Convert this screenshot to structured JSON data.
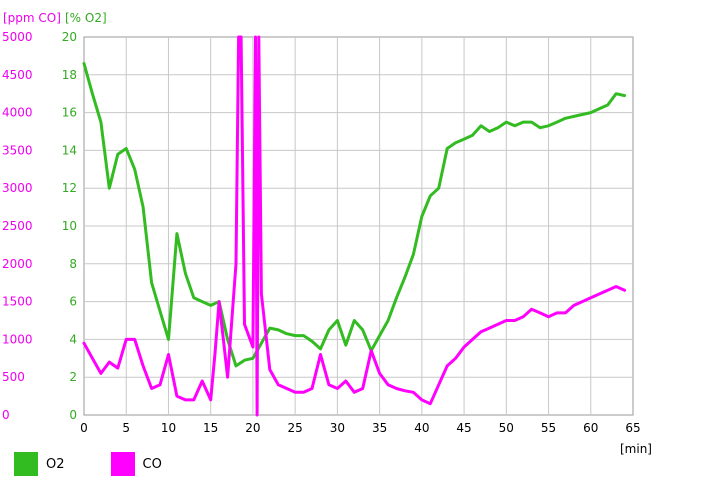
{
  "chart_data": {
    "type": "line",
    "xlabel": "[min]",
    "ylabel_left": "[ppm CO]",
    "ylabel_right": "[% O2]",
    "xlim": [
      0,
      65
    ],
    "ylim_co": [
      0,
      5000
    ],
    "ylim_o2": [
      0,
      20
    ],
    "x_ticks": [
      0,
      5,
      10,
      15,
      20,
      25,
      30,
      35,
      40,
      45,
      50,
      55,
      60,
      65
    ],
    "co_ticks": [
      0,
      500,
      1000,
      1500,
      2000,
      2500,
      3000,
      3500,
      4000,
      4500,
      5000
    ],
    "o2_ticks": [
      0,
      2,
      4,
      6,
      8,
      10,
      12,
      14,
      16,
      18,
      20
    ],
    "grid": true,
    "colors": {
      "o2": "#33bb22",
      "co": "#ff00ff",
      "co_label": "#ee00ee",
      "o2_label": "#33aa22"
    },
    "series": [
      {
        "name": "O2",
        "axis": "o2",
        "color": "#33bb22",
        "x": [
          0,
          1,
          2,
          3,
          4,
          5,
          6,
          7,
          8,
          9,
          10,
          11,
          12,
          13,
          14,
          15,
          16,
          17,
          18,
          19,
          20,
          21,
          22,
          23,
          24,
          25,
          26,
          27,
          28,
          29,
          30,
          31,
          32,
          33,
          34,
          35,
          36,
          37,
          38,
          39,
          40,
          41,
          42,
          43,
          44,
          45,
          46,
          47,
          48,
          49,
          50,
          51,
          52,
          53,
          54,
          55,
          56,
          57,
          58,
          59,
          60,
          61,
          62,
          63,
          64
        ],
        "values": [
          18.6,
          17.0,
          15.5,
          12.0,
          13.8,
          14.1,
          13.0,
          11.0,
          7.0,
          5.5,
          4.0,
          9.6,
          7.5,
          6.2,
          6.0,
          5.8,
          6.0,
          4.0,
          2.6,
          2.9,
          3.0,
          3.8,
          4.6,
          4.5,
          4.3,
          4.2,
          4.2,
          3.9,
          3.5,
          4.5,
          5.0,
          3.7,
          5.0,
          4.5,
          3.4,
          4.2,
          5.0,
          6.2,
          7.3,
          8.5,
          10.5,
          11.6,
          12.0,
          14.1,
          14.4,
          14.6,
          14.8,
          15.3,
          15.0,
          15.2,
          15.5,
          15.3,
          15.5,
          15.5,
          15.2,
          15.3,
          15.5,
          15.7,
          15.8,
          15.9,
          16.0,
          16.2,
          16.4,
          17.0,
          16.9
        ]
      },
      {
        "name": "CO",
        "axis": "co",
        "color": "#ff00ff",
        "x": [
          0,
          1,
          2,
          3,
          4,
          5,
          6,
          7,
          8,
          9,
          10,
          11,
          12,
          13,
          14,
          15,
          15.5,
          16,
          17,
          18,
          18.3,
          18.6,
          19,
          20,
          20.3,
          20.5,
          20.7,
          21,
          22,
          23,
          24,
          25,
          26,
          27,
          28,
          29,
          30,
          31,
          32,
          33,
          34,
          35,
          36,
          37,
          38,
          39,
          40,
          41,
          42,
          43,
          44,
          45,
          46,
          47,
          48,
          49,
          50,
          51,
          52,
          53,
          54,
          55,
          56,
          57,
          58,
          59,
          60,
          61,
          62,
          63,
          64
        ],
        "values": [
          950,
          750,
          550,
          700,
          620,
          1000,
          1000,
          650,
          350,
          400,
          800,
          250,
          200,
          200,
          450,
          200,
          800,
          1500,
          500,
          2000,
          5000,
          5000,
          1200,
          900,
          5000,
          0,
          5000,
          1600,
          600,
          400,
          350,
          300,
          300,
          350,
          800,
          400,
          350,
          450,
          300,
          350,
          850,
          550,
          400,
          350,
          320,
          300,
          200,
          150,
          400,
          650,
          750,
          900,
          1000,
          1100,
          1150,
          1200,
          1250,
          1250,
          1300,
          1400,
          1350,
          1300,
          1350,
          1350,
          1450,
          1500,
          1550,
          1600,
          1650,
          1700,
          1650
        ]
      }
    ]
  }
}
